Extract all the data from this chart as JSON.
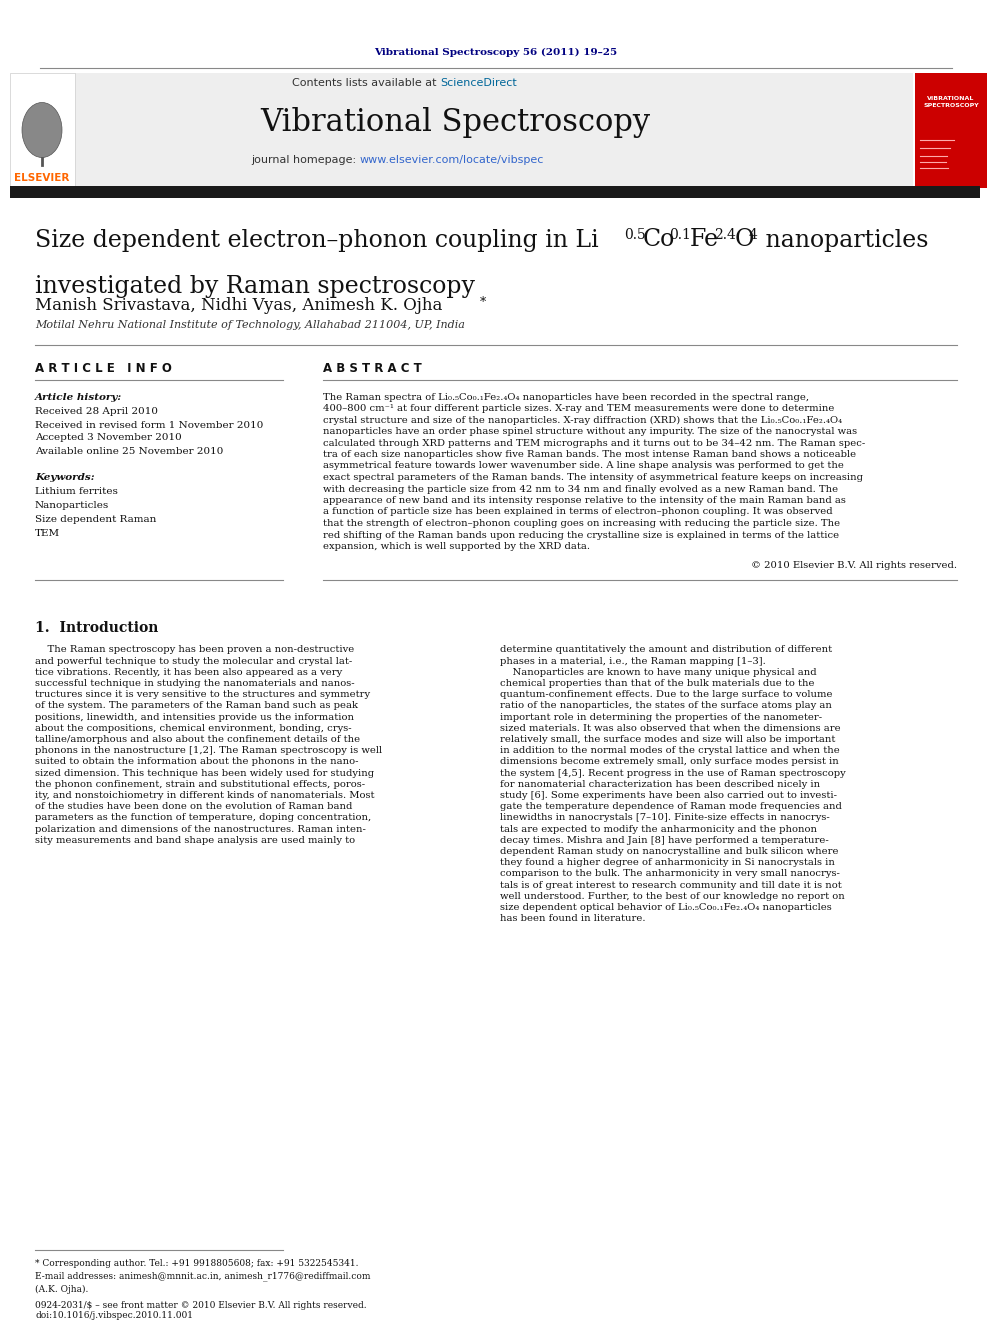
{
  "journal_header": "Vibrational Spectroscopy 56 (2011) 19–25",
  "journal_name": "Vibrational Spectroscopy",
  "contents_text": "Contents lists available at ScienceDirect",
  "journal_url": "journal homepage: www.elsevier.com/locate/vibspec",
  "title_line1": "Size dependent electron–phonon coupling in Li",
  "title_sub1": "0.5",
  "title_mid1": "Co",
  "title_sub2": "0.1",
  "title_mid2": "Fe",
  "title_sub3": "2.4",
  "title_mid3": "O",
  "title_sub4": "4",
  "title_end": " nanoparticles",
  "title_line2": "investigated by Raman spectroscopy",
  "authors": "Manish Srivastava, Nidhi Vyas, Animesh K. Ojha*",
  "affiliation": "Motilal Nehru National Institute of Technology, Allahabad 211004, UP, India",
  "article_info_header": "A R T I C L E   I N F O",
  "abstract_header": "A B S T R A C T",
  "article_history_label": "Article history:",
  "received": "Received 28 April 2010",
  "revised": "Received in revised form 1 November 2010",
  "accepted": "Accepted 3 November 2010",
  "available": "Available online 25 November 2010",
  "keywords_label": "Keywords:",
  "keywords": [
    "Lithium ferrites",
    "Nanoparticles",
    "Size dependent Raman",
    "TEM"
  ],
  "copyright": "© 2010 Elsevier B.V. All rights reserved.",
  "intro_section": "1.  Introduction",
  "footnote_star": "* Corresponding author. Tel.: +91 9918805608; fax: +91 5322545341.",
  "footnote_email": "E-mail addresses: animesh@mnnit.ac.in, animesh_r1776@rediffmail.com",
  "footnote_ak": "(A.K. Ojha).",
  "issn": "0924-2031/$ – see front matter © 2010 Elsevier B.V. All rights reserved.",
  "doi": "doi:10.1016/j.vibspec.2010.11.001",
  "bg_color": "#ffffff",
  "header_bg": "#eeeeee",
  "dark_bar_color": "#1a1a1a",
  "elsevier_orange": "#ff6600",
  "sciencedirect_blue": "#006699",
  "journal_link_blue": "#3366cc",
  "header_journal_blue": "#000080",
  "red_cover_color": "#cc0000"
}
